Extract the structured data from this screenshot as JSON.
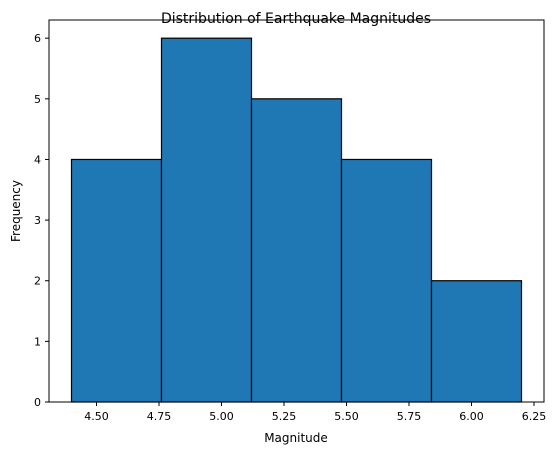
{
  "chart_data": {
    "type": "bar",
    "title": "Distribution of Earthquake Magnitudes",
    "xlabel": "Magnitude",
    "ylabel": "Frequency",
    "bins": [
      {
        "start": 4.4,
        "end": 4.76,
        "count": 4
      },
      {
        "start": 4.76,
        "end": 5.12,
        "count": 6
      },
      {
        "start": 5.12,
        "end": 5.48,
        "count": 5
      },
      {
        "start": 5.48,
        "end": 5.84,
        "count": 4
      },
      {
        "start": 5.84,
        "end": 6.2,
        "count": 2
      }
    ],
    "xlim": [
      4.31,
      6.29
    ],
    "ylim": [
      0,
      6.3
    ],
    "xticks": [
      "4.50",
      "4.75",
      "5.00",
      "5.25",
      "5.50",
      "5.75",
      "6.00",
      "6.25"
    ],
    "yticks": [
      "0",
      "1",
      "2",
      "3",
      "4",
      "5",
      "6"
    ],
    "bar_color": "#1f77b4",
    "edge_color": "#000000",
    "grid": false
  }
}
